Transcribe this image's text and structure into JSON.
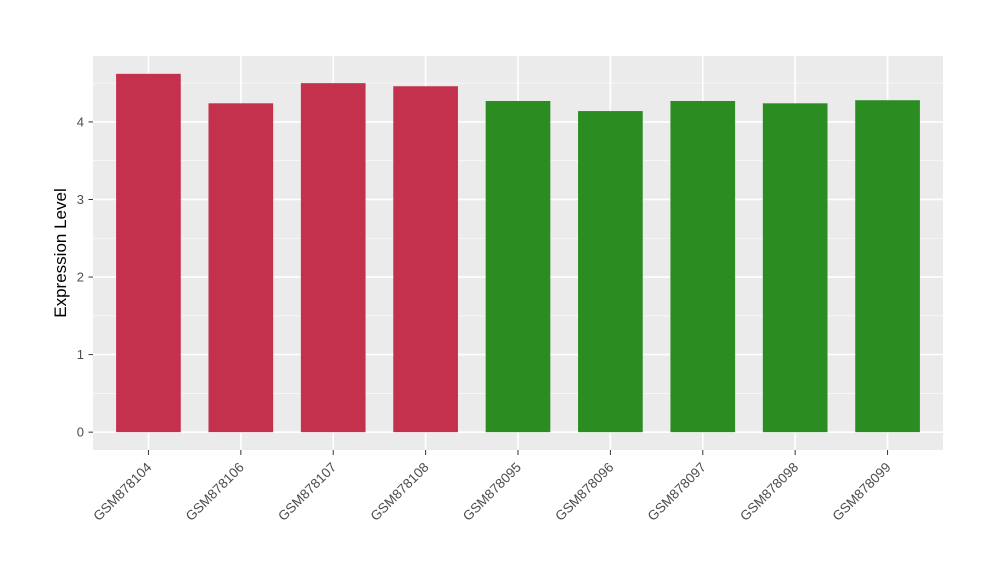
{
  "chart_data": {
    "type": "bar",
    "title": "",
    "xlabel": "",
    "ylabel": "Expression Level",
    "categories": [
      "GSM878104",
      "GSM878106",
      "GSM878107",
      "GSM878108",
      "GSM878095",
      "GSM878096",
      "GSM878097",
      "GSM878098",
      "GSM878099"
    ],
    "values": [
      4.62,
      4.24,
      4.5,
      4.46,
      4.27,
      4.14,
      4.27,
      4.24,
      4.28
    ],
    "groups": [
      "red",
      "red",
      "red",
      "red",
      "green",
      "green",
      "green",
      "green",
      "green"
    ],
    "group_colors": {
      "red": "#C3314D",
      "green": "#2B8C22"
    },
    "yticks": [
      0,
      1,
      2,
      3,
      4
    ],
    "yminor": [
      0.5,
      1.5,
      2.5,
      3.5,
      4.5
    ],
    "ylim": [
      -0.23,
      4.85
    ],
    "x_tick_rotation": -45,
    "legend": "none",
    "grid": true,
    "colors": {
      "panel_background": "#EBEBEB",
      "major_grid": "#FFFFFF",
      "minor_grid": "#FFFFFF",
      "tick_mark": "#333333",
      "tick_label": "#4D4D4D",
      "axis_title": "#000000",
      "page_background": "#FFFFFF"
    }
  }
}
